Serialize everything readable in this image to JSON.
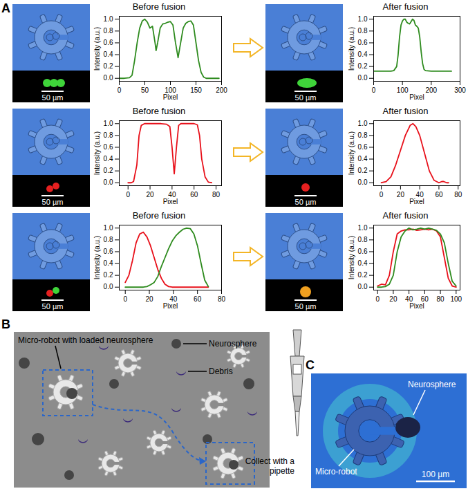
{
  "figure": {
    "panel_labels": [
      "A",
      "B",
      "C"
    ],
    "A_scale_bars": [
      "50 µm",
      "50 µm",
      "50 µm",
      "50 µm",
      "50 µm",
      "50 µm"
    ],
    "B_labels": {
      "robot": "Micro-robot with loaded neurosphere",
      "neurosphere": "Neurosphere",
      "debris": "Debris",
      "pipette": "Collect with a pipette"
    },
    "C_labels": {
      "neurosphere": "Neurosphere",
      "robot": "Micro-robot",
      "scale_bar": "100 µm"
    }
  },
  "chart_data": [
    {
      "type": "line",
      "title": "Before fusion",
      "x_label": "Pixel",
      "y_label": "Intensity (a.u.)",
      "x": [
        0,
        10,
        20,
        25,
        30,
        35,
        40,
        45,
        50,
        55,
        60,
        65,
        70,
        72,
        75,
        80,
        85,
        90,
        95,
        100,
        105,
        110,
        115,
        120,
        125,
        130,
        135,
        140,
        145,
        150,
        155,
        160,
        165,
        170,
        180,
        190,
        195
      ],
      "series": [
        {
          "color": "#2e8b1e",
          "values": [
            0,
            0,
            0.01,
            0.05,
            0.3,
            0.6,
            0.85,
            0.97,
            1.0,
            0.95,
            0.85,
            0.88,
            0.6,
            0.47,
            0.6,
            0.85,
            0.92,
            0.93,
            0.95,
            0.96,
            0.9,
            0.6,
            0.35,
            0.6,
            0.85,
            0.93,
            0.96,
            0.97,
            0.9,
            0.6,
            0.3,
            0.1,
            0.02,
            0,
            0,
            0,
            0
          ]
        }
      ],
      "xlim": [
        0,
        200
      ],
      "xticks": [
        0,
        50,
        100,
        150,
        200
      ],
      "ylim": [
        -0.05,
        1.05
      ],
      "yticks": [
        {
          "value": 0,
          "label": "0.0"
        },
        0.2,
        0.4,
        0.6,
        0.8,
        {
          "value": 1,
          "label": "1.0"
        }
      ]
    },
    {
      "type": "line",
      "title": "After fusion",
      "x_label": "Pixel",
      "y_label": "Intensity (a.u.)",
      "x": [
        0,
        20,
        40,
        60,
        70,
        80,
        85,
        90,
        95,
        100,
        105,
        110,
        115,
        120,
        125,
        130,
        135,
        140,
        145,
        150,
        155,
        160,
        165,
        170,
        175,
        180,
        200,
        220,
        240,
        260,
        270
      ],
      "series": [
        {
          "color": "#2e8b1e",
          "values": [
            0.12,
            0.12,
            0.12,
            0.12,
            0.13,
            0.2,
            0.4,
            0.7,
            0.9,
            0.97,
            1.0,
            1.0,
            0.95,
            0.93,
            0.92,
            0.96,
            1.0,
            0.98,
            0.9,
            0.88,
            0.85,
            0.7,
            0.45,
            0.25,
            0.15,
            0.13,
            0.12,
            0.12,
            0.12,
            0.12,
            0.12
          ]
        }
      ],
      "xlim": [
        0,
        300
      ],
      "xticks": [
        0,
        100,
        200,
        300
      ],
      "ylim": [
        -0.05,
        1.05
      ],
      "yticks": [
        {
          "value": 0,
          "label": "0.0"
        },
        0.2,
        0.4,
        0.6,
        0.8,
        {
          "value": 1,
          "label": "1.0"
        }
      ]
    },
    {
      "type": "line",
      "title": "Before fusion",
      "x_label": "Pixel",
      "y_label": "Intensity (a.u.)",
      "x": [
        0,
        3,
        5,
        8,
        10,
        12,
        15,
        20,
        25,
        30,
        35,
        38,
        40,
        42,
        44,
        46,
        48,
        55,
        60,
        63,
        65,
        67,
        70,
        73,
        76
      ],
      "series": [
        {
          "color": "#e8101a",
          "values": [
            0,
            0,
            0.02,
            0.3,
            0.8,
            0.97,
            1.0,
            1.0,
            1.0,
            1.0,
            0.99,
            0.95,
            0.6,
            0.15,
            0.6,
            0.97,
            1.0,
            1.0,
            1.0,
            0.98,
            0.8,
            0.4,
            0.1,
            0.01,
            0
          ]
        }
      ],
      "xlim": [
        -8,
        85
      ],
      "xticks": [
        0,
        20,
        40,
        60,
        80
      ],
      "ylim": [
        -0.05,
        1.05
      ],
      "yticks": [
        {
          "value": 0,
          "label": "0.0"
        },
        0.2,
        0.4,
        0.6,
        0.8,
        {
          "value": 1,
          "label": "1.0"
        }
      ]
    },
    {
      "type": "line",
      "title": "After fusion",
      "x_label": "Pixel",
      "y_label": "Intensity (a.u.)",
      "x": [
        0,
        5,
        10,
        15,
        20,
        25,
        30,
        33,
        36,
        40,
        45,
        50,
        55,
        60,
        63,
        65,
        68,
        70
      ],
      "series": [
        {
          "color": "#e8101a",
          "values": [
            0,
            0.02,
            0.1,
            0.3,
            0.55,
            0.8,
            0.97,
            1.0,
            0.95,
            0.8,
            0.5,
            0.2,
            0.04,
            0,
            0.02,
            0.02,
            0,
            0
          ]
        }
      ],
      "xlim": [
        -8,
        82
      ],
      "xticks": [
        0,
        20,
        40,
        60,
        80
      ],
      "ylim": [
        -0.05,
        1.05
      ],
      "yticks": [
        {
          "value": 0,
          "label": "0.0"
        },
        0.2,
        0.4,
        0.6,
        0.8,
        {
          "value": 1,
          "label": "1.0"
        }
      ]
    },
    {
      "type": "line",
      "title": "Before fusion",
      "x_label": "Pixel",
      "y_label": "Intensity (a.u.)",
      "x": [
        0,
        3,
        6,
        9,
        12,
        15,
        18,
        21,
        24,
        27,
        30,
        33,
        36,
        39,
        42,
        45,
        48,
        51,
        54,
        57,
        60,
        63,
        66,
        69
      ],
      "series": [
        {
          "color": "#e8101a",
          "values": [
            0.08,
            0.2,
            0.45,
            0.75,
            0.9,
            0.93,
            0.85,
            0.7,
            0.5,
            0.3,
            0.15,
            0.05,
            0.01,
            0,
            0,
            0,
            0,
            0,
            0,
            0,
            0,
            0,
            0,
            0
          ]
        },
        {
          "color": "#2e8b1e",
          "values": [
            0,
            0,
            0,
            0,
            0,
            0,
            0.01,
            0.04,
            0.08,
            0.18,
            0.35,
            0.5,
            0.65,
            0.78,
            0.87,
            0.93,
            0.98,
            1.0,
            0.99,
            0.9,
            0.7,
            0.4,
            0.12,
            0.01
          ]
        }
      ],
      "xlim": [
        -5,
        80
      ],
      "xticks": [
        0,
        20,
        40,
        60,
        80
      ],
      "ylim": [
        -0.05,
        1.05
      ],
      "yticks": [
        {
          "value": 0,
          "label": "0.0"
        },
        0.2,
        0.4,
        0.6,
        0.8,
        {
          "value": 1,
          "label": "1.0"
        }
      ]
    },
    {
      "type": "line",
      "title": "After fusion",
      "x_label": "Pixel",
      "y_label": "Intensity (a.u.)",
      "x": [
        0,
        5,
        10,
        15,
        20,
        25,
        30,
        35,
        40,
        45,
        50,
        55,
        60,
        65,
        70,
        75,
        80,
        85,
        90,
        95,
        100
      ],
      "series": [
        {
          "color": "#e8101a",
          "values": [
            0.02,
            0.05,
            0.04,
            0.2,
            0.6,
            0.9,
            0.95,
            0.97,
            0.97,
            0.98,
            0.96,
            0.97,
            0.98,
            0.97,
            0.98,
            0.95,
            0.85,
            0.5,
            0.15,
            0.02,
            0
          ]
        },
        {
          "color": "#2e8b1e",
          "values": [
            0,
            0,
            0.01,
            0.05,
            0.2,
            0.6,
            0.85,
            0.95,
            1.0,
            0.97,
            0.98,
            1.0,
            0.98,
            1.0,
            0.98,
            0.96,
            0.9,
            0.75,
            0.4,
            0.1,
            0.02
          ]
        }
      ],
      "xlim": [
        -5,
        105
      ],
      "xticks": [
        0,
        20,
        40,
        60,
        80,
        100
      ],
      "ylim": [
        -0.05,
        1.05
      ],
      "yticks": [
        {
          "value": 0,
          "label": "0.0"
        },
        0.2,
        0.4,
        0.6,
        0.8,
        {
          "value": 1,
          "label": "1.0"
        }
      ]
    }
  ]
}
